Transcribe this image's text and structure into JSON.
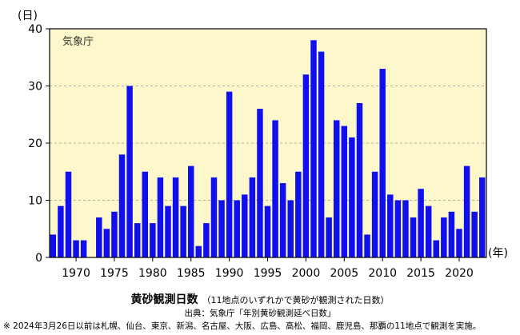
{
  "chart_data": {
    "type": "bar",
    "agency_label": "気象庁",
    "y_unit": "(日)",
    "x_unit": "(年)",
    "ylim": [
      0,
      40
    ],
    "y_ticks": [
      0,
      10,
      20,
      30,
      40
    ],
    "x_ticks": [
      1970,
      1975,
      1980,
      1985,
      1990,
      1995,
      2000,
      2005,
      2010,
      2015,
      2020
    ],
    "grid": "horizontal-dashed",
    "colors": {
      "bar": "#1010ee",
      "plot_bg": "#fdf7cc",
      "grid": "#999999"
    },
    "categories": [
      1967,
      1968,
      1969,
      1970,
      1971,
      1972,
      1973,
      1974,
      1975,
      1976,
      1977,
      1978,
      1979,
      1980,
      1981,
      1982,
      1983,
      1984,
      1985,
      1986,
      1987,
      1988,
      1989,
      1990,
      1991,
      1992,
      1993,
      1994,
      1995,
      1996,
      1997,
      1998,
      1999,
      2000,
      2001,
      2002,
      2003,
      2004,
      2005,
      2006,
      2007,
      2008,
      2009,
      2010,
      2011,
      2012,
      2013,
      2014,
      2015,
      2016,
      2017,
      2018,
      2019,
      2020,
      2021,
      2022,
      2023
    ],
    "values": [
      4,
      9,
      15,
      3,
      3,
      0,
      7,
      5,
      8,
      18,
      30,
      6,
      15,
      6,
      14,
      9,
      14,
      9,
      16,
      2,
      6,
      14,
      10,
      29,
      10,
      11,
      14,
      26,
      9,
      24,
      13,
      10,
      15,
      32,
      38,
      36,
      7,
      24,
      23,
      21,
      27,
      4,
      15,
      33,
      11,
      10,
      10,
      7,
      12,
      9,
      3,
      7,
      8,
      5,
      16,
      8,
      14
    ]
  },
  "caption": {
    "title": "黄砂観測日数",
    "subtitle": "（11地点のいずれかで黄砂が観測された日数）",
    "source": "出典：気象庁「年別黄砂観測延べ日数」",
    "note": "※ 2024年3月26日以前は札幌、仙台、東京、新潟、名古屋、大阪、広島、高松、福岡、鹿児島、那覇の11地点で観測を実施。"
  }
}
